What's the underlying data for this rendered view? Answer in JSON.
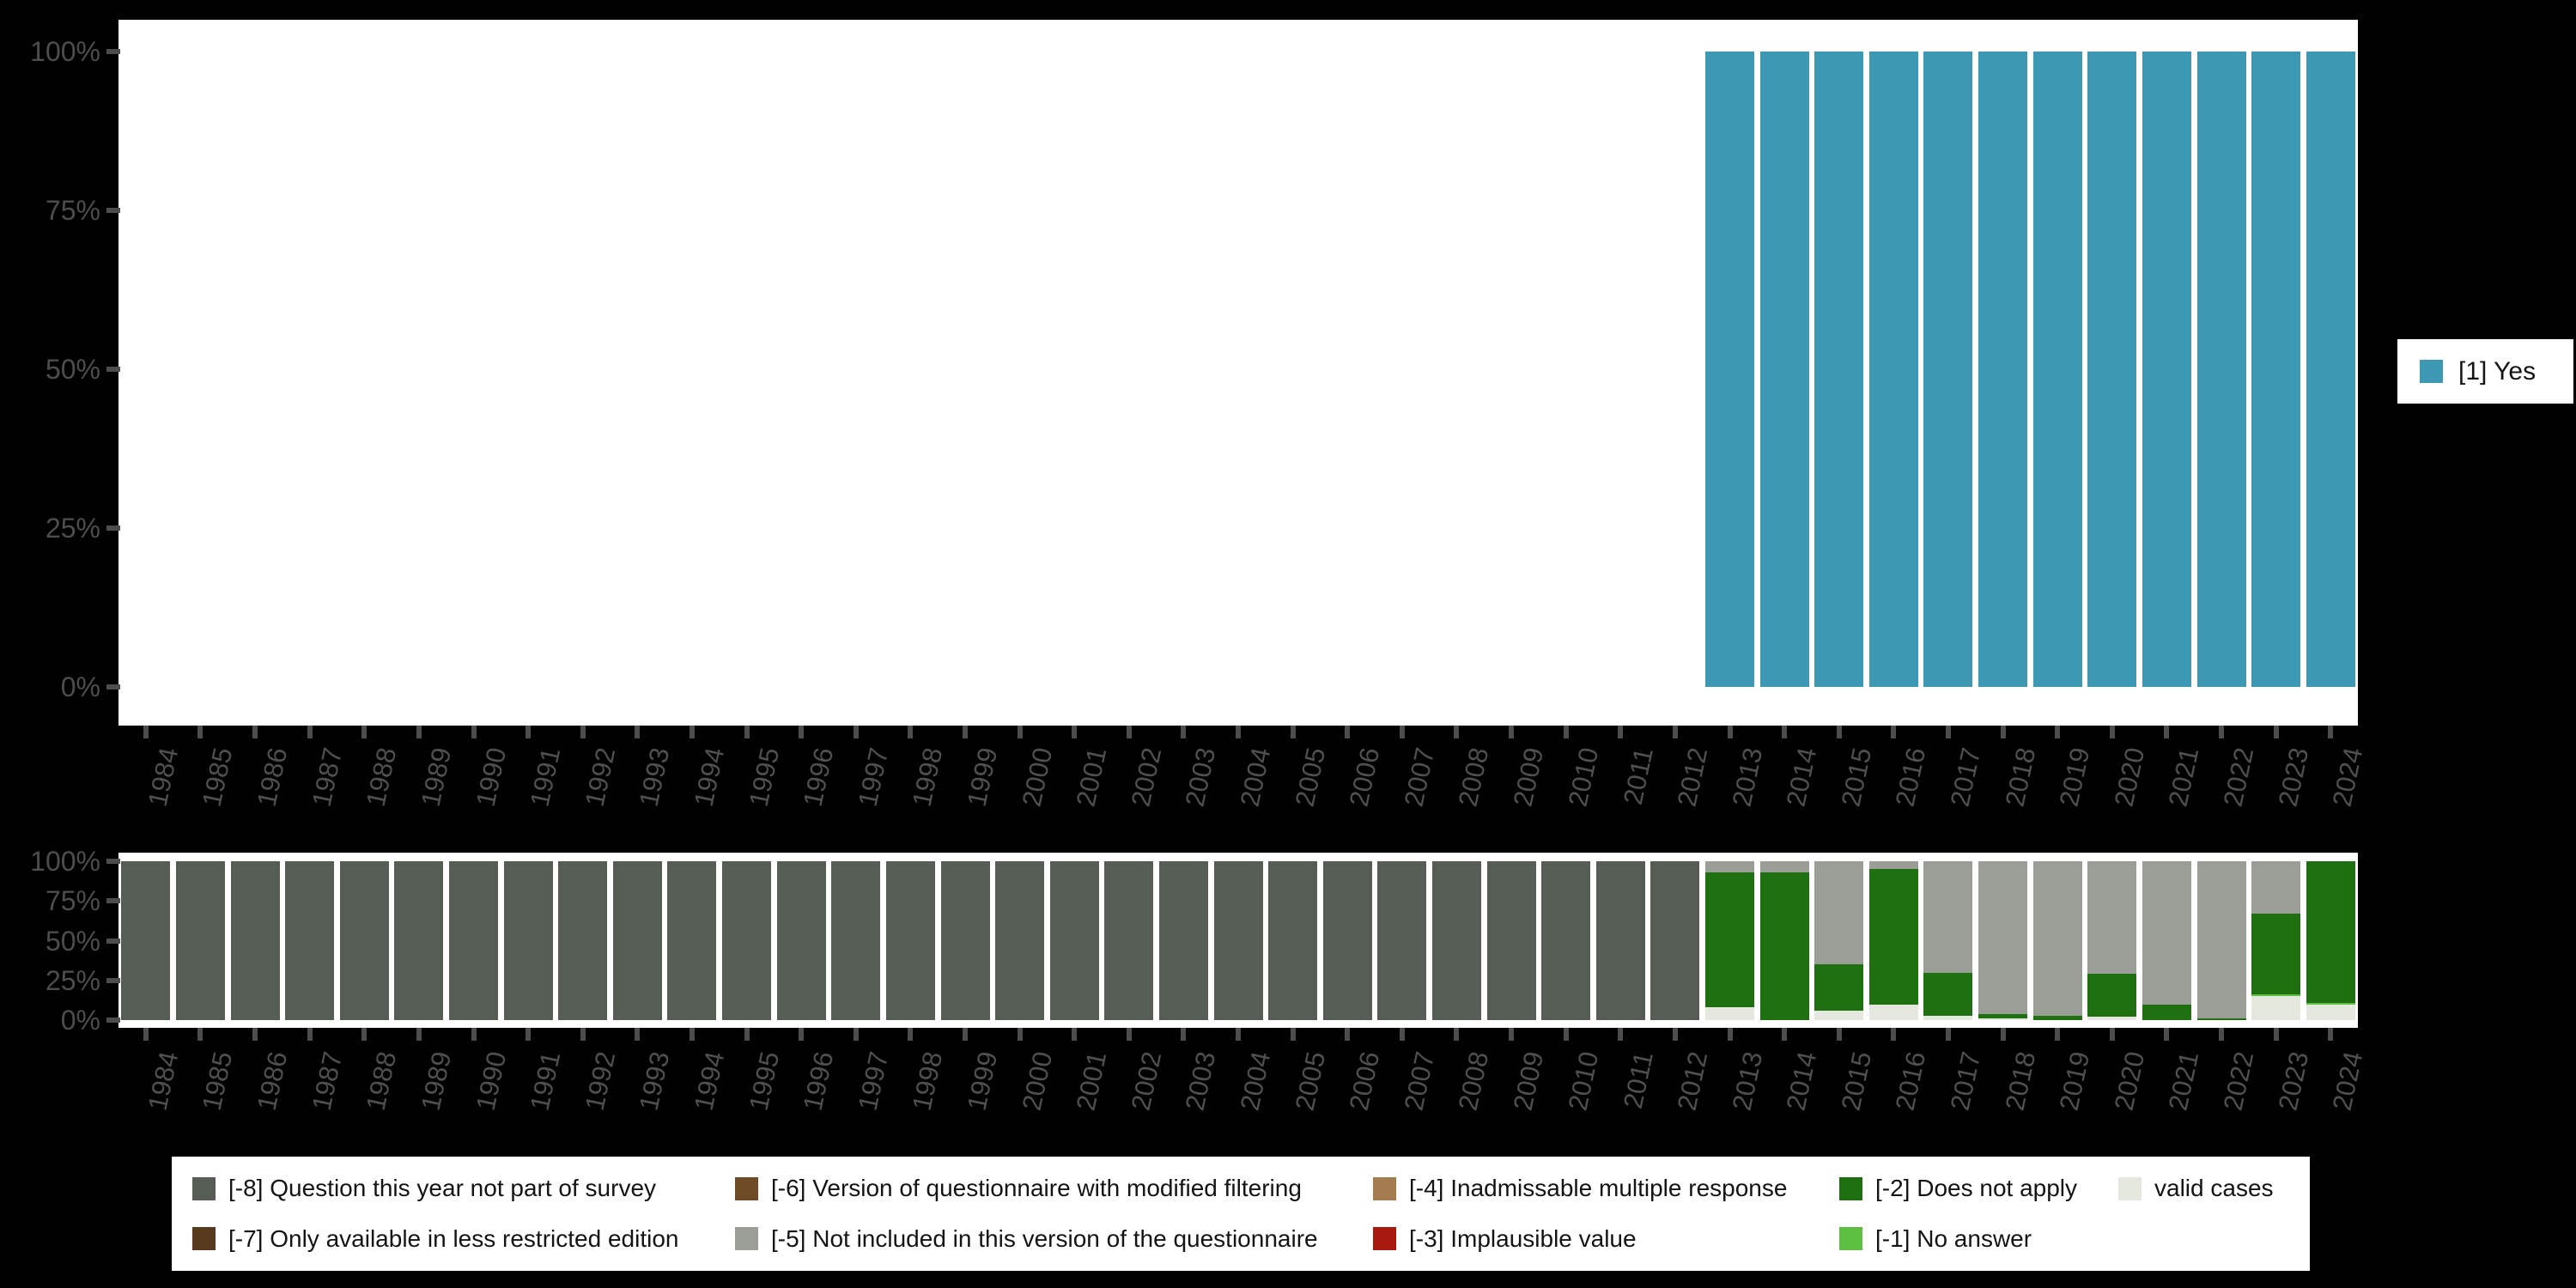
{
  "figure": {
    "background_color": "#000000",
    "panel_color": "#ffffff",
    "axis_text_color": "#4d4d4d"
  },
  "chart_data": [
    {
      "id": "question-presence",
      "type": "bar",
      "stacked": true,
      "unit": "percent",
      "title": "",
      "xlabel": "",
      "ylabel": "",
      "ylim": [
        0,
        100
      ],
      "grid": false,
      "y_ticks": [
        "100%",
        "75%",
        "50%",
        "25%",
        "0%"
      ],
      "categories": [
        1984,
        1985,
        1986,
        1987,
        1988,
        1989,
        1990,
        1991,
        1992,
        1993,
        1994,
        1995,
        1996,
        1997,
        1998,
        1999,
        2000,
        2001,
        2002,
        2003,
        2004,
        2005,
        2006,
        2007,
        2008,
        2009,
        2010,
        2011,
        2012,
        2013,
        2014,
        2015,
        2016,
        2017,
        2018,
        2019,
        2020,
        2021,
        2022,
        2023,
        2024
      ],
      "series": [
        {
          "name": "[1] Yes",
          "color": "#3d98b4",
          "values": [
            0,
            0,
            0,
            0,
            0,
            0,
            0,
            0,
            0,
            0,
            0,
            0,
            0,
            0,
            0,
            0,
            0,
            0,
            0,
            0,
            0,
            0,
            0,
            0,
            0,
            0,
            0,
            0,
            0,
            100,
            100,
            100,
            100,
            100,
            100,
            100,
            100,
            100,
            100,
            100,
            100
          ]
        }
      ],
      "legend": {
        "position": "right",
        "items": [
          {
            "label": "[1] Yes",
            "color": "#3d98b4"
          }
        ]
      }
    },
    {
      "id": "missing-values",
      "type": "bar",
      "stacked": true,
      "unit": "percent",
      "title": "",
      "xlabel": "",
      "ylabel": "",
      "ylim": [
        0,
        100
      ],
      "grid": false,
      "y_ticks": [
        "100%",
        "75%",
        "50%",
        "25%",
        "0%"
      ],
      "categories": [
        1984,
        1985,
        1986,
        1987,
        1988,
        1989,
        1990,
        1991,
        1992,
        1993,
        1994,
        1995,
        1996,
        1997,
        1998,
        1999,
        2000,
        2001,
        2002,
        2003,
        2004,
        2005,
        2006,
        2007,
        2008,
        2009,
        2010,
        2011,
        2012,
        2013,
        2014,
        2015,
        2016,
        2017,
        2018,
        2019,
        2020,
        2021,
        2022,
        2023,
        2024
      ],
      "series": [
        {
          "name": "valid cases",
          "color": "#e4e8df",
          "values": [
            0,
            0,
            0,
            0,
            0,
            0,
            0,
            0,
            0,
            0,
            0,
            0,
            0,
            0,
            0,
            0,
            0,
            0,
            0,
            0,
            0,
            0,
            0,
            0,
            0,
            0,
            0,
            0,
            0,
            8,
            0,
            6,
            10,
            3,
            1,
            0,
            2,
            0,
            0,
            15,
            10
          ]
        },
        {
          "name": "[-1] No answer",
          "color": "#5dbf3f",
          "values": [
            0,
            0,
            0,
            0,
            0,
            0,
            0,
            0,
            0,
            0,
            0,
            0,
            0,
            0,
            0,
            0,
            0,
            0,
            0,
            0,
            0,
            0,
            0,
            0,
            0,
            0,
            0,
            0,
            0,
            0,
            0,
            0,
            0,
            0,
            0,
            0,
            0,
            0,
            0,
            1,
            1
          ]
        },
        {
          "name": "[-2] Does not apply",
          "color": "#1f7011",
          "values": [
            0,
            0,
            0,
            0,
            0,
            0,
            0,
            0,
            0,
            0,
            0,
            0,
            0,
            0,
            0,
            0,
            0,
            0,
            0,
            0,
            0,
            0,
            0,
            0,
            0,
            0,
            0,
            0,
            0,
            85,
            93,
            29,
            85,
            27,
            3,
            3,
            27,
            10,
            1,
            51,
            89
          ]
        },
        {
          "name": "[-3] Implausible value",
          "color": "#a81a10",
          "values": [
            0,
            0,
            0,
            0,
            0,
            0,
            0,
            0,
            0,
            0,
            0,
            0,
            0,
            0,
            0,
            0,
            0,
            0,
            0,
            0,
            0,
            0,
            0,
            0,
            0,
            0,
            0,
            0,
            0,
            0,
            0,
            0,
            0,
            0,
            0,
            0,
            0,
            0,
            0,
            0,
            0
          ]
        },
        {
          "name": "[-4] Inadmissable multiple response",
          "color": "#a57c50",
          "values": [
            0,
            0,
            0,
            0,
            0,
            0,
            0,
            0,
            0,
            0,
            0,
            0,
            0,
            0,
            0,
            0,
            0,
            0,
            0,
            0,
            0,
            0,
            0,
            0,
            0,
            0,
            0,
            0,
            0,
            0,
            0,
            0,
            0,
            0,
            0,
            0,
            0,
            0,
            0,
            0,
            0
          ]
        },
        {
          "name": "[-5] Not included in this version of the questionnaire",
          "color": "#9a9e96",
          "values": [
            0,
            0,
            0,
            0,
            0,
            0,
            0,
            0,
            0,
            0,
            0,
            0,
            0,
            0,
            0,
            0,
            0,
            0,
            0,
            0,
            0,
            0,
            0,
            0,
            0,
            0,
            0,
            0,
            0,
            7,
            7,
            65,
            5,
            70,
            96,
            97,
            71,
            90,
            99,
            33,
            0
          ]
        },
        {
          "name": "[-6] Version of questionnaire with modified filtering",
          "color": "#6e4a26",
          "values": [
            0,
            0,
            0,
            0,
            0,
            0,
            0,
            0,
            0,
            0,
            0,
            0,
            0,
            0,
            0,
            0,
            0,
            0,
            0,
            0,
            0,
            0,
            0,
            0,
            0,
            0,
            0,
            0,
            0,
            0,
            0,
            0,
            0,
            0,
            0,
            0,
            0,
            0,
            0,
            0,
            0
          ]
        },
        {
          "name": "[-7] Only available in less restricted edition",
          "color": "#573a1e",
          "values": [
            0,
            0,
            0,
            0,
            0,
            0,
            0,
            0,
            0,
            0,
            0,
            0,
            0,
            0,
            0,
            0,
            0,
            0,
            0,
            0,
            0,
            0,
            0,
            0,
            0,
            0,
            0,
            0,
            0,
            0,
            0,
            0,
            0,
            0,
            0,
            0,
            0,
            0,
            0,
            0,
            0
          ]
        },
        {
          "name": "[-8] Question this year not part of survey",
          "color": "#565d54",
          "values": [
            100,
            100,
            100,
            100,
            100,
            100,
            100,
            100,
            100,
            100,
            100,
            100,
            100,
            100,
            100,
            100,
            100,
            100,
            100,
            100,
            100,
            100,
            100,
            100,
            100,
            100,
            100,
            100,
            100,
            0,
            0,
            0,
            0,
            0,
            0,
            0,
            0,
            0,
            0,
            0,
            0
          ]
        }
      ],
      "legend": {
        "position": "bottom",
        "items_order": [
          "[-8] Question this year not part of survey",
          "[-7] Only available in less restricted edition",
          "[-6] Version of questionnaire with modified filtering",
          "[-5] Not included in this version of the questionnaire",
          "[-4] Inadmissable multiple response",
          "[-3] Implausible value",
          "[-2] Does not apply",
          "[-1] No answer",
          "valid cases"
        ]
      }
    }
  ]
}
